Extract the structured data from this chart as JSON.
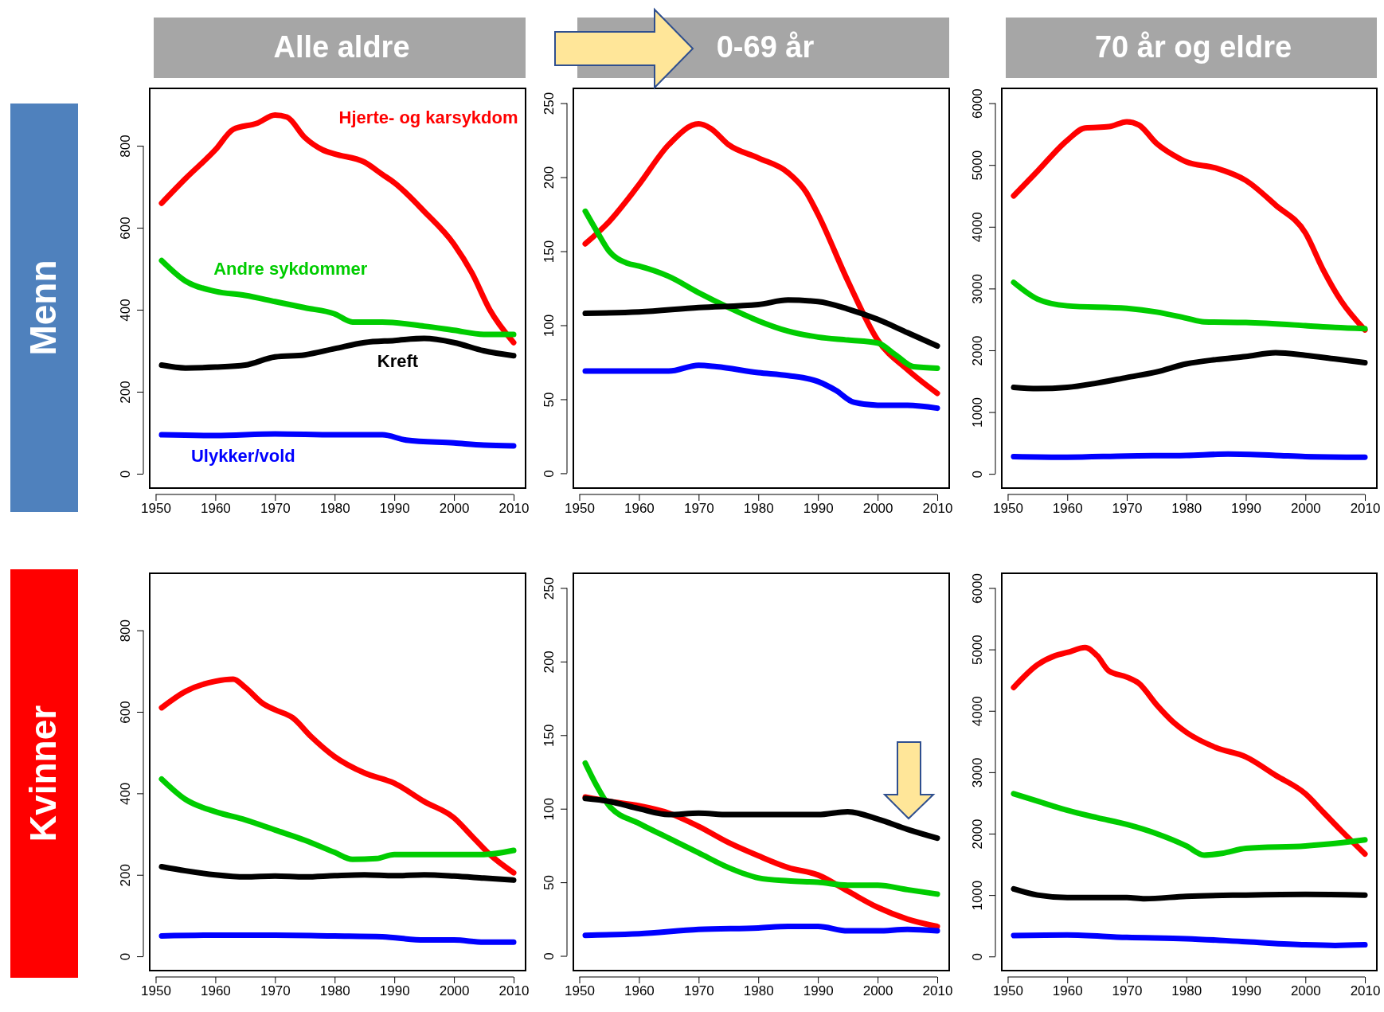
{
  "chart_data": [
    {
      "type": "line",
      "title": "Alle aldre",
      "ylabel": "Menn",
      "xlim": [
        1949,
        2012
      ],
      "xticks": [
        1950,
        1960,
        1970,
        1980,
        1990,
        2000,
        2010
      ],
      "ylim": [
        -35,
        940
      ],
      "yticks": [
        0,
        200,
        400,
        600,
        800
      ],
      "series": [
        {
          "name": "Hjerte- og karsykdom",
          "color": "#ff0000",
          "x": [
            1951,
            1955,
            1960,
            1963,
            1967,
            1970,
            1972,
            1975,
            1978,
            1980,
            1985,
            1988,
            1990,
            1995,
            2000,
            2003,
            2006,
            2010
          ],
          "values": [
            660,
            720,
            790,
            840,
            855,
            875,
            870,
            820,
            790,
            780,
            760,
            730,
            710,
            640,
            560,
            490,
            400,
            320
          ]
        },
        {
          "name": "Andre sykdommer",
          "color": "#00cc00",
          "x": [
            1951,
            1955,
            1960,
            1965,
            1970,
            1975,
            1980,
            1983,
            1988,
            1995,
            2000,
            2005,
            2010
          ],
          "values": [
            520,
            470,
            445,
            435,
            420,
            405,
            390,
            370,
            370,
            360,
            350,
            340,
            340
          ]
        },
        {
          "name": "Kreft",
          "color": "#000000",
          "x": [
            1951,
            1955,
            1960,
            1965,
            1970,
            1975,
            1980,
            1985,
            1990,
            1995,
            2000,
            2005,
            2010
          ],
          "values": [
            265,
            258,
            260,
            265,
            285,
            290,
            305,
            320,
            325,
            330,
            320,
            300,
            288
          ]
        },
        {
          "name": "Ulykker/vold",
          "color": "#0000ff",
          "x": [
            1951,
            1960,
            1970,
            1980,
            1988,
            1992,
            2000,
            2005,
            2010
          ],
          "values": [
            95,
            93,
            97,
            95,
            95,
            82,
            75,
            70,
            68
          ]
        }
      ]
    },
    {
      "type": "line",
      "title": "0-69 år",
      "xlim": [
        1949,
        2012
      ],
      "xticks": [
        1950,
        1960,
        1970,
        1980,
        1990,
        2000,
        2010
      ],
      "ylim": [
        -10,
        260
      ],
      "yticks": [
        0,
        50,
        100,
        150,
        200,
        250
      ],
      "series": [
        {
          "color": "#ff0000",
          "x": [
            1951,
            1955,
            1960,
            1965,
            1970,
            1972,
            1975,
            1980,
            1985,
            1988,
            1990,
            1995,
            2000,
            2005,
            2010
          ],
          "values": [
            155,
            170,
            195,
            222,
            236,
            233,
            222,
            213,
            203,
            190,
            175,
            130,
            90,
            70,
            54
          ]
        },
        {
          "color": "#00cc00",
          "x": [
            1951,
            1953,
            1955,
            1958,
            1960,
            1965,
            1970,
            1975,
            1980,
            1985,
            1990,
            1995,
            2000,
            2003,
            2006,
            2010
          ],
          "values": [
            177,
            163,
            150,
            142,
            140,
            133,
            122,
            112,
            103,
            96,
            92,
            90,
            88,
            80,
            72,
            71
          ]
        },
        {
          "color": "#000000",
          "x": [
            1951,
            1960,
            1970,
            1980,
            1985,
            1990,
            1995,
            2000,
            2005,
            2010
          ],
          "values": [
            108,
            109,
            112,
            114,
            117,
            116,
            111,
            104,
            95,
            86
          ]
        },
        {
          "color": "#0000ff",
          "x": [
            1951,
            1965,
            1970,
            1973,
            1980,
            1985,
            1990,
            1993,
            1996,
            2000,
            2005,
            2010
          ],
          "values": [
            69,
            69,
            73,
            72,
            68,
            66,
            62,
            56,
            48,
            46,
            46,
            44
          ]
        }
      ]
    },
    {
      "type": "line",
      "title": "70 år og eldre",
      "xlim": [
        1949,
        2012
      ],
      "xticks": [
        1950,
        1960,
        1970,
        1980,
        1990,
        2000,
        2010
      ],
      "ylim": [
        -230,
        6240
      ],
      "yticks": [
        0,
        1000,
        2000,
        3000,
        4000,
        5000,
        6000
      ],
      "series": [
        {
          "color": "#ff0000",
          "x": [
            1951,
            1955,
            1960,
            1963,
            1967,
            1970,
            1972,
            1975,
            1978,
            1980,
            1985,
            1990,
            1995,
            2000,
            2003,
            2006,
            2010
          ],
          "values": [
            4500,
            4900,
            5400,
            5600,
            5620,
            5700,
            5650,
            5350,
            5150,
            5050,
            4950,
            4750,
            4350,
            3900,
            3300,
            2800,
            2330
          ]
        },
        {
          "color": "#00cc00",
          "x": [
            1951,
            1955,
            1960,
            1970,
            1975,
            1980,
            1983,
            1990,
            2000,
            2005,
            2010
          ],
          "values": [
            3100,
            2830,
            2720,
            2680,
            2620,
            2520,
            2460,
            2450,
            2400,
            2370,
            2350
          ]
        },
        {
          "color": "#000000",
          "x": [
            1951,
            1955,
            1960,
            1965,
            1970,
            1975,
            1980,
            1985,
            1990,
            1995,
            2000,
            2005,
            2010
          ],
          "values": [
            1400,
            1380,
            1400,
            1470,
            1560,
            1650,
            1780,
            1850,
            1900,
            1960,
            1920,
            1860,
            1800
          ]
        },
        {
          "color": "#0000ff",
          "x": [
            1951,
            1960,
            1970,
            1980,
            1987,
            1995,
            2000,
            2010
          ],
          "values": [
            280,
            270,
            290,
            300,
            320,
            300,
            280,
            270
          ]
        }
      ]
    },
    {
      "type": "line",
      "ylabel": "Kvinner",
      "xlim": [
        1949,
        2012
      ],
      "xticks": [
        1950,
        1960,
        1970,
        1980,
        1990,
        2000,
        2010
      ],
      "ylim": [
        -35,
        940
      ],
      "yticks": [
        0,
        200,
        400,
        600,
        800
      ],
      "series": [
        {
          "color": "#ff0000",
          "x": [
            1951,
            1955,
            1960,
            1963,
            1965,
            1968,
            1970,
            1973,
            1976,
            1980,
            1985,
            1990,
            1995,
            2000,
            2003,
            2006,
            2010
          ],
          "values": [
            610,
            650,
            675,
            680,
            660,
            620,
            605,
            585,
            540,
            490,
            450,
            425,
            380,
            340,
            295,
            250,
            205
          ]
        },
        {
          "color": "#00cc00",
          "x": [
            1951,
            1955,
            1960,
            1965,
            1970,
            1975,
            1980,
            1983,
            1987,
            1990,
            2000,
            2005,
            2010
          ],
          "values": [
            435,
            385,
            355,
            335,
            310,
            285,
            255,
            238,
            240,
            250,
            250,
            250,
            260
          ]
        },
        {
          "color": "#000000",
          "x": [
            1951,
            1955,
            1960,
            1965,
            1970,
            1975,
            1980,
            1985,
            1990,
            1995,
            2000,
            2005,
            2010
          ],
          "values": [
            220,
            210,
            200,
            195,
            197,
            195,
            198,
            200,
            198,
            200,
            197,
            192,
            187
          ]
        },
        {
          "color": "#0000ff",
          "x": [
            1951,
            1960,
            1970,
            1980,
            1988,
            1995,
            2000,
            2005,
            2010
          ],
          "values": [
            50,
            52,
            52,
            50,
            48,
            40,
            40,
            35,
            35
          ]
        }
      ]
    },
    {
      "type": "line",
      "xlim": [
        1949,
        2012
      ],
      "xticks": [
        1950,
        1960,
        1970,
        1980,
        1990,
        2000,
        2010
      ],
      "ylim": [
        -10,
        260
      ],
      "yticks": [
        0,
        50,
        100,
        150,
        200,
        250
      ],
      "series": [
        {
          "color": "#ff0000",
          "x": [
            1951,
            1955,
            1960,
            1965,
            1970,
            1975,
            1980,
            1985,
            1990,
            1995,
            2000,
            2005,
            2010
          ],
          "values": [
            108,
            105,
            102,
            97,
            88,
            77,
            68,
            60,
            55,
            44,
            33,
            25,
            20
          ]
        },
        {
          "color": "#00cc00",
          "x": [
            1951,
            1953,
            1955,
            1960,
            1965,
            1970,
            1975,
            1980,
            1985,
            1990,
            1995,
            2000,
            2005,
            2010
          ],
          "values": [
            131,
            115,
            102,
            90,
            80,
            70,
            60,
            53,
            51,
            50,
            48,
            48,
            45,
            42
          ]
        },
        {
          "color": "#000000",
          "x": [
            1951,
            1955,
            1960,
            1965,
            1970,
            1975,
            1980,
            1985,
            1990,
            1995,
            2000,
            2005,
            2010
          ],
          "values": [
            107,
            105,
            100,
            96,
            97,
            96,
            96,
            96,
            96,
            98,
            93,
            86,
            80
          ]
        },
        {
          "color": "#0000ff",
          "x": [
            1951,
            1960,
            1970,
            1980,
            1985,
            1990,
            1995,
            2000,
            2005,
            2010
          ],
          "values": [
            14,
            15,
            18,
            19,
            20,
            20,
            17,
            17,
            18,
            17
          ]
        }
      ]
    },
    {
      "type": "line",
      "xlim": [
        1949,
        2012
      ],
      "xticks": [
        1950,
        1960,
        1970,
        1980,
        1990,
        2000,
        2010
      ],
      "ylim": [
        -230,
        6240
      ],
      "yticks": [
        0,
        1000,
        2000,
        3000,
        4000,
        5000,
        6000
      ],
      "series": [
        {
          "color": "#ff0000",
          "x": [
            1951,
            1955,
            1958,
            1960,
            1963,
            1965,
            1967,
            1970,
            1972,
            1975,
            1978,
            1980,
            1985,
            1990,
            1995,
            2000,
            2003,
            2006,
            2010
          ],
          "values": [
            4380,
            4750,
            4900,
            4950,
            5030,
            4900,
            4650,
            4550,
            4450,
            4100,
            3800,
            3650,
            3400,
            3250,
            2950,
            2650,
            2350,
            2050,
            1670
          ]
        },
        {
          "color": "#00cc00",
          "x": [
            1951,
            1955,
            1960,
            1965,
            1970,
            1975,
            1980,
            1983,
            1986,
            1990,
            2000,
            2005,
            2010
          ],
          "values": [
            2650,
            2530,
            2380,
            2260,
            2150,
            2000,
            1800,
            1650,
            1680,
            1760,
            1800,
            1840,
            1900
          ]
        },
        {
          "color": "#000000",
          "x": [
            1951,
            1955,
            1960,
            1970,
            1973,
            1980,
            1990,
            2000,
            2010
          ],
          "values": [
            1100,
            1000,
            960,
            960,
            940,
            980,
            1000,
            1010,
            1000
          ]
        },
        {
          "color": "#0000ff",
          "x": [
            1951,
            1960,
            1970,
            1980,
            1990,
            2000,
            2005,
            2010
          ],
          "values": [
            340,
            350,
            310,
            290,
            240,
            190,
            180,
            190
          ]
        }
      ]
    }
  ]
}
